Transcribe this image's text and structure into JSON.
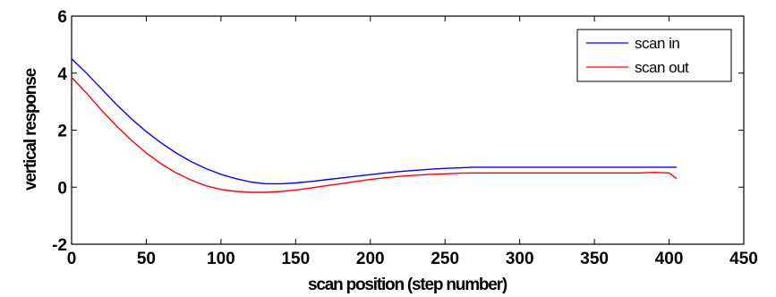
{
  "chart_data": {
    "type": "line",
    "title": "",
    "xlabel": "scan position (step number)",
    "ylabel": "vertical response",
    "xlim": [
      0,
      450
    ],
    "ylim": [
      -2,
      6
    ],
    "xticks": [
      0,
      50,
      100,
      150,
      200,
      250,
      300,
      350,
      400,
      450
    ],
    "yticks": [
      -2,
      0,
      2,
      4,
      6
    ],
    "grid": false,
    "legend_position": "top-right",
    "series": [
      {
        "name": "scan in",
        "color": "#0000ff",
        "x": [
          0,
          10,
          20,
          30,
          40,
          50,
          60,
          70,
          80,
          90,
          100,
          110,
          120,
          130,
          140,
          150,
          160,
          170,
          180,
          190,
          200,
          210,
          220,
          230,
          240,
          250,
          260,
          270,
          280,
          290,
          300,
          310,
          320,
          330,
          340,
          350,
          360,
          370,
          380,
          390,
          400,
          405
        ],
        "y": [
          4.5,
          4.0,
          3.45,
          2.9,
          2.4,
          1.95,
          1.55,
          1.2,
          0.9,
          0.65,
          0.45,
          0.3,
          0.18,
          0.12,
          0.12,
          0.15,
          0.2,
          0.26,
          0.32,
          0.38,
          0.44,
          0.5,
          0.55,
          0.59,
          0.63,
          0.66,
          0.68,
          0.7,
          0.7,
          0.7,
          0.7,
          0.7,
          0.7,
          0.7,
          0.7,
          0.7,
          0.7,
          0.7,
          0.7,
          0.7,
          0.7,
          0.7
        ]
      },
      {
        "name": "scan out",
        "color": "#ff0000",
        "x": [
          0,
          10,
          20,
          30,
          40,
          50,
          60,
          70,
          80,
          90,
          100,
          110,
          120,
          130,
          140,
          150,
          160,
          170,
          180,
          190,
          200,
          210,
          220,
          230,
          240,
          250,
          260,
          270,
          280,
          290,
          300,
          310,
          320,
          330,
          340,
          350,
          360,
          370,
          380,
          390,
          400,
          405
        ],
        "y": [
          3.85,
          3.3,
          2.7,
          2.15,
          1.65,
          1.2,
          0.82,
          0.5,
          0.25,
          0.05,
          -0.08,
          -0.15,
          -0.18,
          -0.18,
          -0.15,
          -0.1,
          -0.03,
          0.05,
          0.12,
          0.2,
          0.27,
          0.33,
          0.38,
          0.42,
          0.45,
          0.47,
          0.49,
          0.5,
          0.5,
          0.5,
          0.5,
          0.5,
          0.5,
          0.5,
          0.5,
          0.5,
          0.5,
          0.5,
          0.5,
          0.52,
          0.5,
          0.3
        ]
      }
    ]
  }
}
